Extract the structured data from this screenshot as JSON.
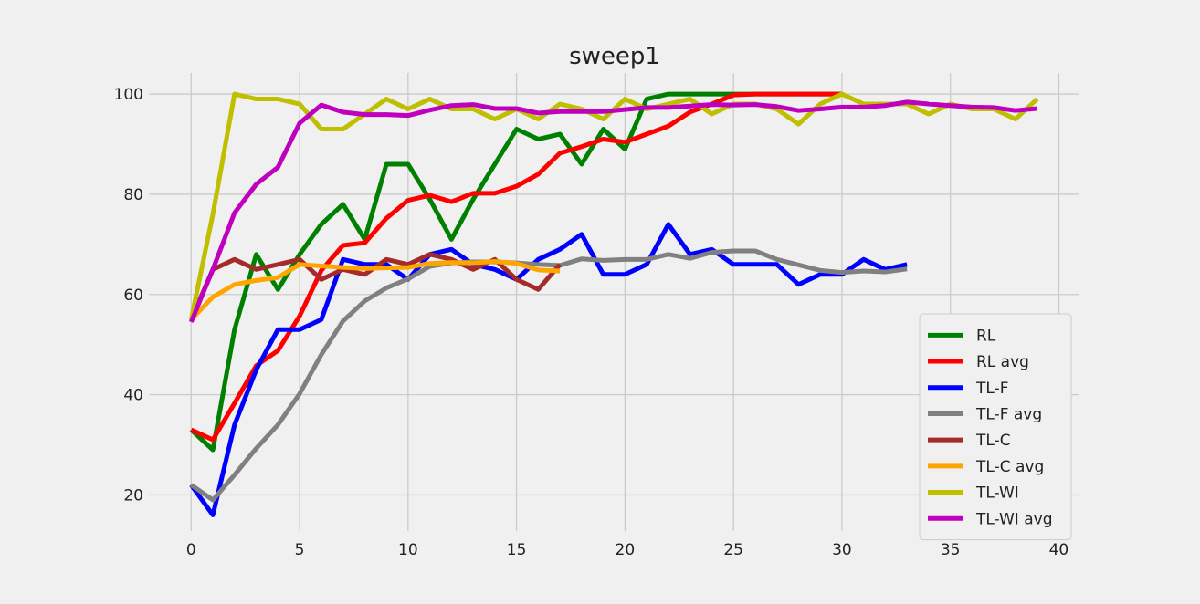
{
  "chart_data": {
    "type": "line",
    "title": "sweep1",
    "xlabel": "",
    "ylabel": "",
    "xlim": [
      -1.95,
      40.95
    ],
    "ylim": [
      12.8,
      104.2
    ],
    "xticks": [
      0,
      5,
      10,
      15,
      20,
      25,
      30,
      35,
      40
    ],
    "yticks": [
      20,
      40,
      60,
      80,
      100
    ],
    "grid": true,
    "legend_position": "lower-right",
    "series": [
      {
        "name": "RL",
        "color": "#008000",
        "values": [
          33,
          29,
          53,
          68,
          61,
          68,
          74,
          78,
          71,
          86,
          86,
          79,
          71,
          79,
          86,
          93,
          91,
          92,
          86,
          93,
          89,
          99,
          100,
          100,
          100,
          100,
          100,
          100,
          100,
          100,
          100
        ]
      },
      {
        "name": "RL avg",
        "color": "#ff0000",
        "values": [
          33,
          31,
          38.3,
          45.8,
          48.8,
          55.7,
          64.8,
          69.8,
          70.3,
          75.2,
          78.8,
          79.8,
          78.5,
          80.2,
          80.2,
          81.6,
          84,
          88.2,
          89.5,
          91,
          90.4,
          92,
          93.6,
          96.4,
          98,
          99.8,
          100,
          100,
          100,
          100,
          100
        ]
      },
      {
        "name": "TL-F",
        "color": "#0000ff",
        "values": [
          22,
          16,
          34,
          45,
          53,
          53,
          55,
          67,
          66,
          66,
          63,
          68,
          69,
          66,
          65,
          63,
          67,
          69,
          72,
          64,
          64,
          66,
          74,
          68,
          69,
          66,
          66,
          66,
          62,
          64,
          64,
          67,
          65,
          66
        ]
      },
      {
        "name": "TL-F avg",
        "color": "#808080",
        "values": [
          22,
          19,
          24,
          29.3,
          34,
          40.2,
          48,
          54.7,
          58.7,
          61.3,
          63.1,
          65.6,
          66.3,
          66.5,
          66.5,
          66.3,
          66,
          65.8,
          67.1,
          66.8,
          67,
          67,
          68,
          67.2,
          68.4,
          68.7,
          68.7,
          67,
          65.9,
          64.8,
          64.4,
          64.7,
          64.5,
          65.1
        ]
      },
      {
        "name": "TL-C",
        "color": "#a52a2a",
        "values": [
          55,
          65,
          67,
          65,
          66,
          67,
          63,
          65,
          64,
          67,
          66,
          68,
          67,
          65,
          67,
          63,
          61,
          66
        ]
      },
      {
        "name": "TL-C avg",
        "color": "#ffa500",
        "values": [
          55,
          59.5,
          62,
          62.8,
          63.4,
          66,
          65.7,
          65.4,
          65.2,
          65.3,
          65.4,
          66.2,
          66.4,
          66.3,
          66.6,
          66.2,
          64.9,
          64.7
        ]
      },
      {
        "name": "TL-WI",
        "color": "#bfbf00",
        "values": [
          55,
          76,
          100,
          99,
          99,
          98,
          93,
          93,
          96,
          99,
          97,
          99,
          97,
          97,
          95,
          97,
          95,
          98,
          97,
          95,
          99,
          97,
          98,
          99,
          96,
          98,
          98,
          97,
          94,
          98,
          100,
          98,
          98,
          98,
          96,
          98,
          97,
          97,
          95,
          99
        ]
      },
      {
        "name": "TL-WI avg",
        "color": "#bf00bf",
        "values": [
          54.5,
          65,
          76.3,
          82,
          85.4,
          94.2,
          97.8,
          96.4,
          95.9,
          95.9,
          95.7,
          96.8,
          97.7,
          97.9,
          97.1,
          97.1,
          96.2,
          96.5,
          96.5,
          96.5,
          96.9,
          97.3,
          97.3,
          97.6,
          97.9,
          97.8,
          97.9,
          97.5,
          96.7,
          97,
          97.4,
          97.4,
          97.7,
          98.4,
          98,
          97.7,
          97.4,
          97.3,
          96.7,
          97.1
        ]
      }
    ]
  }
}
